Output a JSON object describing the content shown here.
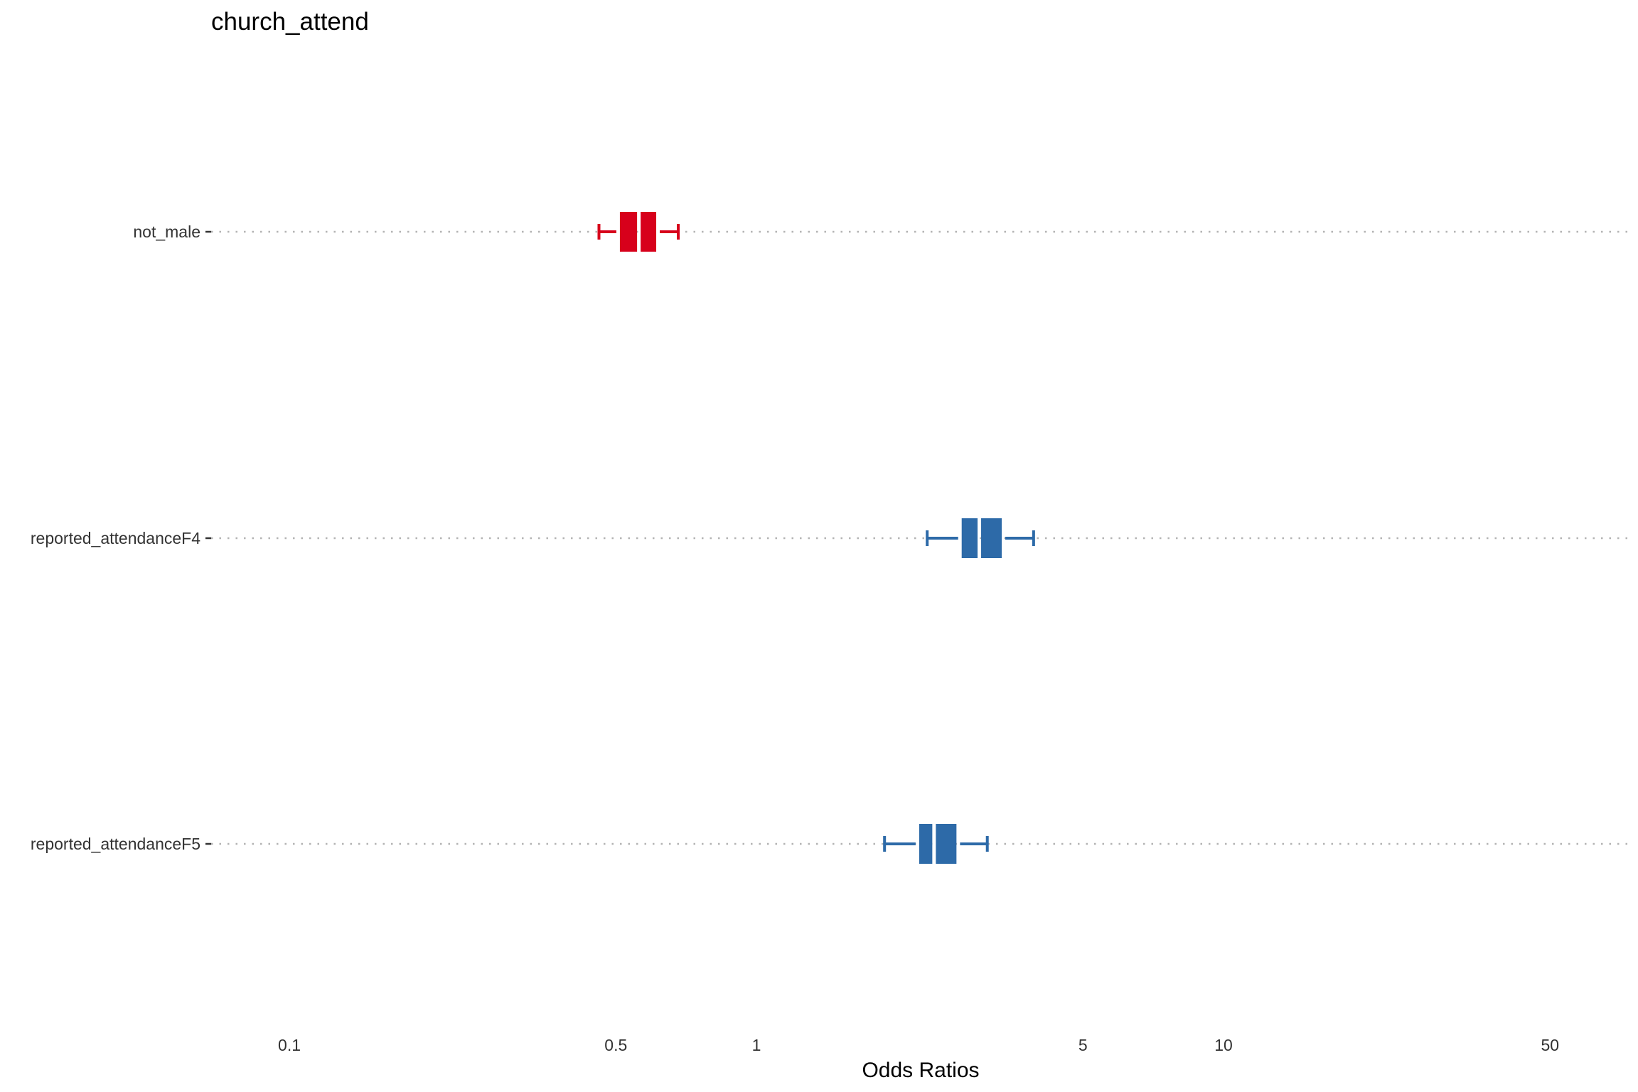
{
  "chart_data": {
    "type": "forest",
    "title": "church_attend",
    "xlabel": "Odds Ratios",
    "x_scale": "log",
    "xlim": [
      0.068,
      75
    ],
    "x_ticks": [
      {
        "value": 0.1,
        "label": "0.1"
      },
      {
        "value": 0.5,
        "label": "0.5"
      },
      {
        "value": 1,
        "label": "1"
      },
      {
        "value": 5,
        "label": "5"
      },
      {
        "value": 10,
        "label": "10"
      },
      {
        "value": 50,
        "label": "50"
      }
    ],
    "grid": "dotted-horizontal",
    "colors": {
      "negative": "#d7001b",
      "positive": "#2d6aa8",
      "grid": "#b3b3b3",
      "axis_text": "#333333"
    },
    "terms": [
      {
        "label": "not_male",
        "estimate": 0.56,
        "inner_low": 0.51,
        "inner_high": 0.61,
        "conf_low": 0.46,
        "conf_high": 0.68,
        "color": "#d7001b"
      },
      {
        "label": "reported_attendanceF4",
        "estimate": 3.0,
        "inner_low": 2.75,
        "inner_high": 3.35,
        "conf_low": 2.32,
        "conf_high": 3.92,
        "color": "#2d6aa8"
      },
      {
        "label": "reported_attendanceF5",
        "estimate": 2.4,
        "inner_low": 2.23,
        "inner_high": 2.68,
        "conf_low": 1.88,
        "conf_high": 3.12,
        "color": "#2d6aa8"
      }
    ]
  }
}
